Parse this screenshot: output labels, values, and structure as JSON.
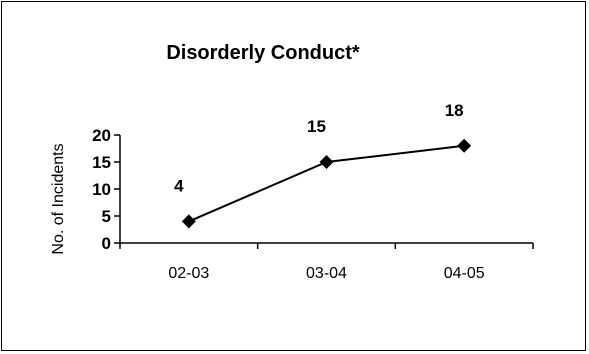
{
  "chart_data": {
    "type": "line",
    "title": "Disorderly Conduct*",
    "xlabel": "",
    "ylabel": "No. of Incidents",
    "categories": [
      "02-03",
      "03-04",
      "04-05"
    ],
    "series": [
      {
        "values": [
          4,
          15,
          18
        ],
        "data_labels": [
          "4",
          "15",
          "18"
        ]
      }
    ],
    "ylim": [
      0,
      20
    ],
    "yticks": [
      "0",
      "5",
      "10",
      "15",
      "20"
    ],
    "grid": false,
    "legend": "none",
    "marker": "diamond",
    "line_color": "#000000"
  }
}
